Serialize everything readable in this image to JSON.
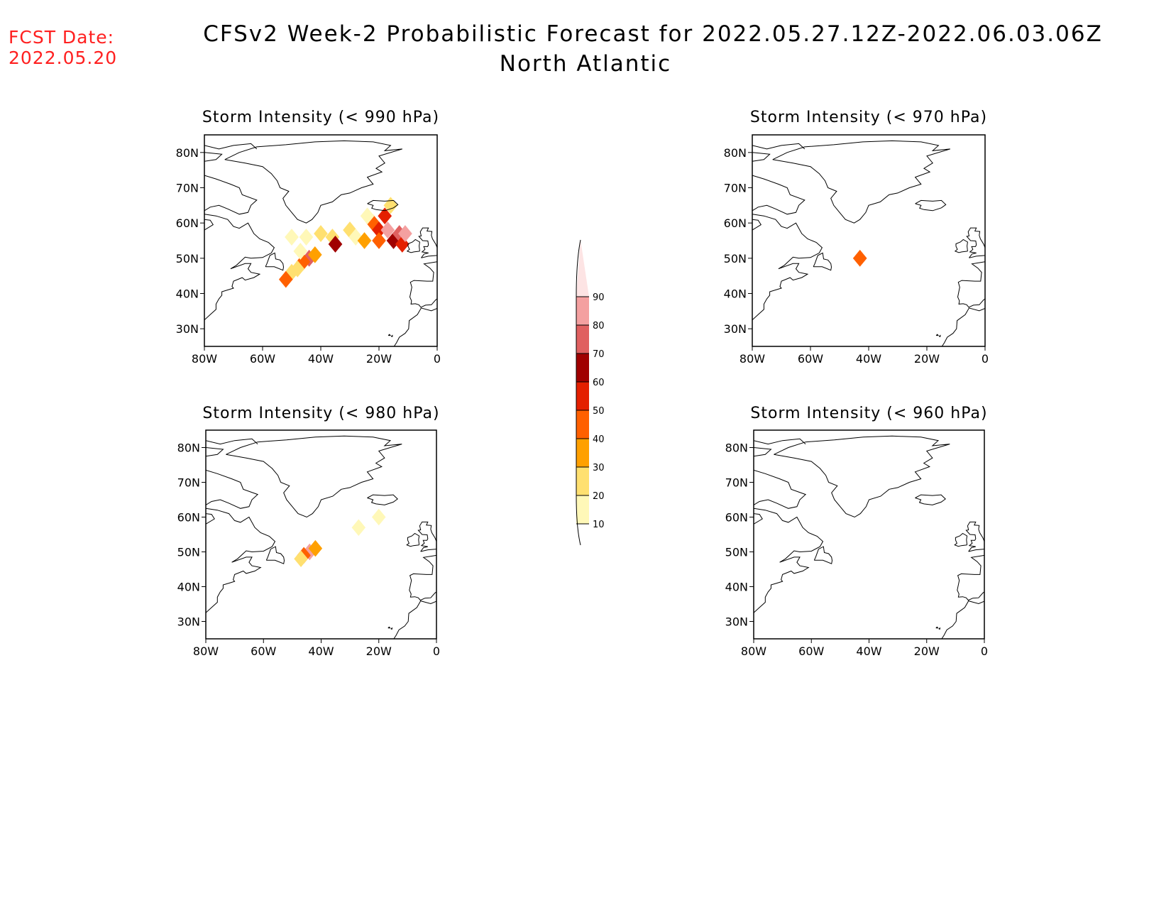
{
  "header": {
    "fcst_label": "FCST Date:",
    "fcst_date": "2022.05.20",
    "title": "CFSv2 Week-2 Probabilistic Forecast for 2022.05.27.12Z-2022.06.03.06Z",
    "region": "North Atlantic"
  },
  "map_extent": {
    "lon": [
      -80,
      0
    ],
    "lat": [
      25,
      85
    ]
  },
  "axes": {
    "lat_ticks": [
      {
        "v": 80,
        "label": "80N"
      },
      {
        "v": 70,
        "label": "70N"
      },
      {
        "v": 60,
        "label": "60N"
      },
      {
        "v": 50,
        "label": "50N"
      },
      {
        "v": 40,
        "label": "40N"
      },
      {
        "v": 30,
        "label": "30N"
      }
    ],
    "lon_ticks": [
      {
        "v": -80,
        "label": "80W"
      },
      {
        "v": -60,
        "label": "60W"
      },
      {
        "v": -40,
        "label": "40W"
      },
      {
        "v": -20,
        "label": "20W"
      },
      {
        "v": 0,
        "label": "0"
      }
    ]
  },
  "panels": [
    {
      "id": "p990",
      "title": "Storm Intensity (< 990 hPa)",
      "cells": [
        {
          "lon": -44,
          "lat": 50,
          "p": 75
        },
        {
          "lon": -46,
          "lat": 49,
          "p": 45
        },
        {
          "lon": -48,
          "lat": 47,
          "p": 25
        },
        {
          "lon": -42,
          "lat": 51,
          "p": 30
        },
        {
          "lon": -50,
          "lat": 46,
          "p": 20
        },
        {
          "lon": -52,
          "lat": 44,
          "p": 40
        },
        {
          "lon": -47,
          "lat": 52,
          "p": 15
        },
        {
          "lon": -36,
          "lat": 56,
          "p": 25
        },
        {
          "lon": -40,
          "lat": 57,
          "p": 20
        },
        {
          "lon": -35,
          "lat": 54,
          "p": 60
        },
        {
          "lon": -30,
          "lat": 58,
          "p": 20
        },
        {
          "lon": -28,
          "lat": 56,
          "p": 15
        },
        {
          "lon": -25,
          "lat": 55,
          "p": 35
        },
        {
          "lon": -22,
          "lat": 60,
          "p": 40
        },
        {
          "lon": -20,
          "lat": 58,
          "p": 55
        },
        {
          "lon": -17,
          "lat": 58,
          "p": 80
        },
        {
          "lon": -18,
          "lat": 62,
          "p": 50
        },
        {
          "lon": -15,
          "lat": 55,
          "p": 65
        },
        {
          "lon": -13,
          "lat": 57,
          "p": 75
        },
        {
          "lon": -12,
          "lat": 54,
          "p": 55
        },
        {
          "lon": -16,
          "lat": 65,
          "p": 20
        },
        {
          "lon": -20,
          "lat": 55,
          "p": 45
        },
        {
          "lon": -45,
          "lat": 56,
          "p": 15
        },
        {
          "lon": -50,
          "lat": 56,
          "p": 15
        },
        {
          "lon": -24,
          "lat": 62,
          "p": 15
        },
        {
          "lon": -11,
          "lat": 57,
          "p": 85
        }
      ]
    },
    {
      "id": "p970",
      "title": "Storm Intensity (< 970 hPa)",
      "cells": [
        {
          "lon": -43,
          "lat": 50,
          "p": 45
        }
      ]
    },
    {
      "id": "p980",
      "title": "Storm Intensity (< 980 hPa)",
      "cells": [
        {
          "lon": -44,
          "lat": 50,
          "p": 80
        },
        {
          "lon": -46,
          "lat": 49,
          "p": 40
        },
        {
          "lon": -42,
          "lat": 51,
          "p": 30
        },
        {
          "lon": -47,
          "lat": 48,
          "p": 20
        },
        {
          "lon": -27,
          "lat": 57,
          "p": 15
        },
        {
          "lon": -20,
          "lat": 60,
          "p": 15
        }
      ]
    },
    {
      "id": "p960",
      "title": "Storm Intensity (< 960 hPa)",
      "cells": []
    }
  ],
  "colorbar": {
    "levels": [
      10,
      20,
      30,
      40,
      50,
      60,
      70,
      80,
      90
    ],
    "colors": [
      "#fff8b8",
      "#ffe070",
      "#ffa000",
      "#ff6000",
      "#e42000",
      "#a00000",
      "#e06060",
      "#f4a0a0",
      "#fde4e4"
    ]
  }
}
